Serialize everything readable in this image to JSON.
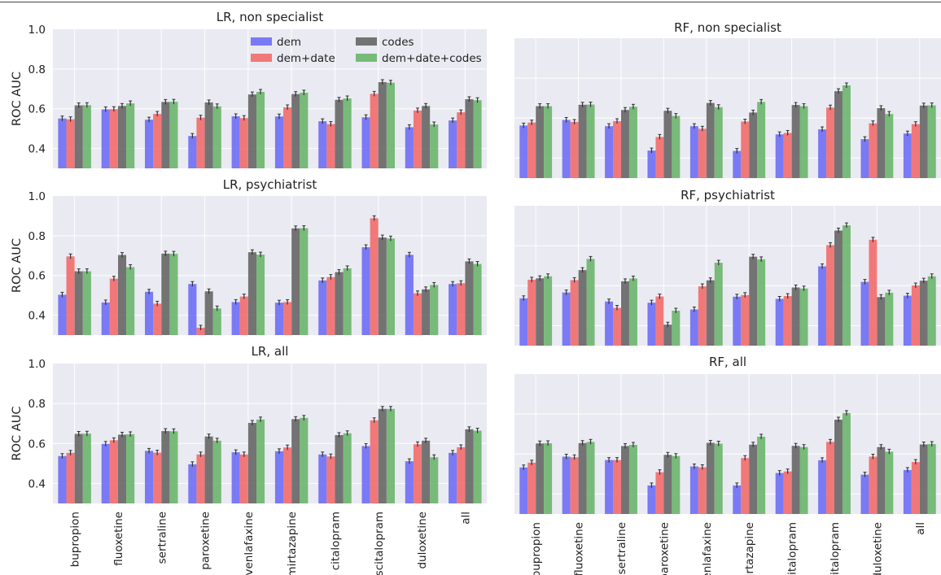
{
  "figure": {
    "series_names": [
      "dem",
      "dem+date",
      "codes",
      "dem+date+codes"
    ],
    "series_colors": [
      "#6e6ef5",
      "#f26c6c",
      "#666666",
      "#6bb56b"
    ],
    "panel_bg": "#eaeaf2",
    "grid_color": "#ffffff",
    "legend": {
      "placement": "top-right of LR, non specialist",
      "columns": 2
    }
  },
  "chart_data": [
    {
      "type": "bar",
      "title": "LR, non specialist",
      "ylabel": "ROC AUC",
      "ylim": [
        0.3,
        1.0
      ],
      "yticks": [
        "0.4",
        "0.6",
        "0.8",
        "1.0"
      ],
      "categories": [
        "bupropion",
        "fluoxetine",
        "sertraline",
        "paroxetine",
        "venlafaxine",
        "mirtazapine",
        "citalopram",
        "escitalopram",
        "duloxetine",
        "all"
      ],
      "series": [
        {
          "name": "dem",
          "values": [
            0.551,
            0.597,
            0.545,
            0.463,
            0.562,
            0.561,
            0.537,
            0.557,
            0.507,
            0.541
          ]
        },
        {
          "name": "dem+date",
          "values": [
            0.547,
            0.598,
            0.574,
            0.555,
            0.553,
            0.607,
            0.523,
            0.675,
            0.591,
            0.582
          ]
        },
        {
          "name": "codes",
          "values": [
            0.617,
            0.614,
            0.634,
            0.632,
            0.672,
            0.674,
            0.645,
            0.734,
            0.614,
            0.648
          ]
        },
        {
          "name": "dem+date+codes",
          "values": [
            0.618,
            0.627,
            0.635,
            0.612,
            0.685,
            0.681,
            0.652,
            0.731,
            0.521,
            0.643
          ]
        }
      ],
      "grid": true
    },
    {
      "type": "bar",
      "title": "RF, non specialist",
      "ylabel": "",
      "ylim": [
        0.3,
        1.0
      ],
      "categories": [
        "bupropion",
        "fluoxetine",
        "sertraline",
        "paroxetine",
        "venlafaxine",
        "mirtazapine",
        "citalopram",
        "escitalopram",
        "duloxetine",
        "all"
      ],
      "series": [
        {
          "name": "dem",
          "values": [
            0.563,
            0.591,
            0.56,
            0.438,
            0.56,
            0.436,
            0.519,
            0.544,
            0.495,
            0.523
          ]
        },
        {
          "name": "dem+date",
          "values": [
            0.578,
            0.581,
            0.585,
            0.506,
            0.547,
            0.583,
            0.526,
            0.653,
            0.574,
            0.57
          ]
        },
        {
          "name": "codes",
          "values": [
            0.66,
            0.667,
            0.641,
            0.637,
            0.676,
            0.628,
            0.666,
            0.735,
            0.65,
            0.663
          ]
        },
        {
          "name": "dem+date+codes",
          "values": [
            0.66,
            0.668,
            0.657,
            0.611,
            0.655,
            0.681,
            0.66,
            0.764,
            0.621,
            0.664
          ]
        }
      ],
      "grid": true
    },
    {
      "type": "bar",
      "title": "LR, psychiatrist",
      "ylabel": "ROC AUC",
      "ylim": [
        0.3,
        1.0
      ],
      "yticks": [
        "0.4",
        "0.6",
        "0.8",
        "1.0"
      ],
      "categories": [
        "bupropion",
        "fluoxetine",
        "sertraline",
        "paroxetine",
        "venlafaxine",
        "mirtazapine",
        "citalopram",
        "escitalopram",
        "duloxetine",
        "all"
      ],
      "series": [
        {
          "name": "dem",
          "values": [
            0.503,
            0.464,
            0.518,
            0.557,
            0.466,
            0.463,
            0.575,
            0.742,
            0.704,
            0.557
          ]
        },
        {
          "name": "dem+date",
          "values": [
            0.696,
            0.584,
            0.458,
            0.337,
            0.494,
            0.466,
            0.592,
            0.888,
            0.51,
            0.561
          ]
        },
        {
          "name": "codes",
          "values": [
            0.621,
            0.703,
            0.71,
            0.52,
            0.717,
            0.837,
            0.617,
            0.791,
            0.53,
            0.671
          ]
        },
        {
          "name": "dem+date+codes",
          "values": [
            0.621,
            0.642,
            0.709,
            0.434,
            0.705,
            0.838,
            0.636,
            0.786,
            0.552,
            0.658
          ]
        }
      ],
      "grid": true
    },
    {
      "type": "bar",
      "title": "RF, psychiatrist",
      "ylabel": "",
      "ylim": [
        0.3,
        1.0
      ],
      "categories": [
        "bupropion",
        "fluoxetine",
        "sertraline",
        "paroxetine",
        "venlafaxine",
        "mirtazapine",
        "citalopram",
        "escitalopram",
        "duloxetine",
        "all"
      ],
      "series": [
        {
          "name": "dem",
          "values": [
            0.537,
            0.566,
            0.521,
            0.515,
            0.481,
            0.545,
            0.534,
            0.697,
            0.619,
            0.55
          ]
        },
        {
          "name": "dem+date",
          "values": [
            0.63,
            0.628,
            0.489,
            0.546,
            0.597,
            0.553,
            0.548,
            0.803,
            0.83,
            0.601
          ]
        },
        {
          "name": "codes",
          "values": [
            0.637,
            0.678,
            0.622,
            0.405,
            0.627,
            0.745,
            0.591,
            0.876,
            0.543,
            0.625
          ]
        },
        {
          "name": "dem+date+codes",
          "values": [
            0.647,
            0.734,
            0.636,
            0.475,
            0.715,
            0.732,
            0.586,
            0.902,
            0.565,
            0.647
          ]
        }
      ],
      "grid": true
    },
    {
      "type": "bar",
      "title": "LR, all",
      "ylabel": "ROC AUC",
      "ylim": [
        0.3,
        1.0
      ],
      "yticks": [
        "0.4",
        "0.6",
        "0.8",
        "1.0"
      ],
      "categories": [
        "bupropion",
        "fluoxetine",
        "sertraline",
        "paroxetine",
        "venlafaxine",
        "mirtazapine",
        "citalopram",
        "escitalopram",
        "duloxetine",
        "all"
      ],
      "series": [
        {
          "name": "dem",
          "values": [
            0.537,
            0.598,
            0.563,
            0.496,
            0.556,
            0.561,
            0.545,
            0.587,
            0.511,
            0.553
          ]
        },
        {
          "name": "dem+date",
          "values": [
            0.553,
            0.616,
            0.554,
            0.545,
            0.545,
            0.58,
            0.535,
            0.716,
            0.596,
            0.581
          ]
        },
        {
          "name": "codes",
          "values": [
            0.648,
            0.644,
            0.662,
            0.635,
            0.703,
            0.722,
            0.642,
            0.773,
            0.614,
            0.671
          ]
        },
        {
          "name": "dem+date+codes",
          "values": [
            0.649,
            0.646,
            0.661,
            0.614,
            0.72,
            0.728,
            0.651,
            0.773,
            0.531,
            0.664
          ]
        }
      ],
      "grid": true
    },
    {
      "type": "bar",
      "title": "RF, all",
      "ylabel": "",
      "ylim": [
        0.3,
        1.0
      ],
      "categories": [
        "bupropion",
        "fluoxetine",
        "sertraline",
        "paroxetine",
        "venlafaxine",
        "mirtazapine",
        "citalopram",
        "escitalopram",
        "duloxetine",
        "all"
      ],
      "series": [
        {
          "name": "dem",
          "values": [
            0.533,
            0.587,
            0.57,
            0.443,
            0.538,
            0.443,
            0.505,
            0.569,
            0.497,
            0.52
          ]
        },
        {
          "name": "dem+date",
          "values": [
            0.557,
            0.584,
            0.57,
            0.509,
            0.534,
            0.58,
            0.513,
            0.661,
            0.587,
            0.56
          ]
        },
        {
          "name": "codes",
          "values": [
            0.653,
            0.655,
            0.64,
            0.596,
            0.656,
            0.647,
            0.641,
            0.772,
            0.635,
            0.648
          ]
        },
        {
          "name": "dem+date+codes",
          "values": [
            0.654,
            0.661,
            0.646,
            0.59,
            0.652,
            0.687,
            0.635,
            0.805,
            0.612,
            0.65
          ]
        }
      ],
      "grid": true
    }
  ]
}
